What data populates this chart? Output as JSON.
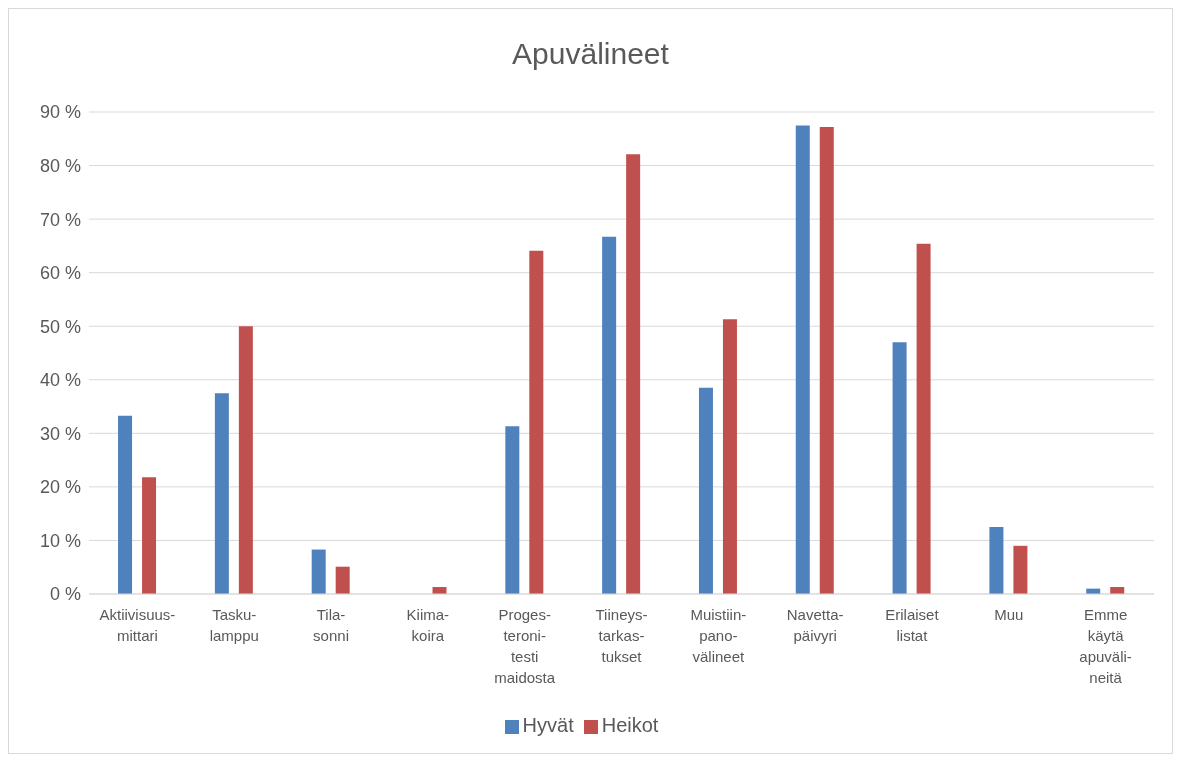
{
  "chart_data": {
    "type": "bar",
    "title": "Apuvälineet",
    "categories": [
      "Aktiivisuus-\nmittari",
      "Tasku-\nlamppu",
      "Tila-\nsonni",
      "Kiima-\nkoira",
      "Proges-\nteroni-\ntesti\nmaidosta",
      "Tiineys-\ntarkas-\ntukset",
      "Muistiin-\npano-\nvälineet",
      "Navetta-\npäivyri",
      "Erilaiset\nlistat",
      "Muu",
      "Emme\nkäytä\napuväli-\nneitä"
    ],
    "series": [
      {
        "name": "Hyvät",
        "color": "#4f81bd",
        "values": [
          33.3,
          37.5,
          8.3,
          0,
          31.3,
          66.7,
          38.5,
          87.5,
          47.0,
          12.5,
          1.0
        ]
      },
      {
        "name": "Heikot",
        "color": "#c0504d",
        "values": [
          21.8,
          50.0,
          5.1,
          1.3,
          64.1,
          82.1,
          51.3,
          87.2,
          65.4,
          9.0,
          1.3
        ]
      }
    ],
    "ylim": [
      0,
      90
    ],
    "yticks": [
      {
        "value": 0,
        "label": "0 %"
      },
      {
        "value": 10,
        "label": "10 %"
      },
      {
        "value": 20,
        "label": "20 %"
      },
      {
        "value": 30,
        "label": "30 %"
      },
      {
        "value": 40,
        "label": "40 %"
      },
      {
        "value": 50,
        "label": "50 %"
      },
      {
        "value": 60,
        "label": "60 %"
      },
      {
        "value": 70,
        "label": "70 %"
      },
      {
        "value": 80,
        "label": "80 %"
      },
      {
        "value": 90,
        "label": "90 %"
      }
    ],
    "grid": "y",
    "legend": "bottom"
  }
}
